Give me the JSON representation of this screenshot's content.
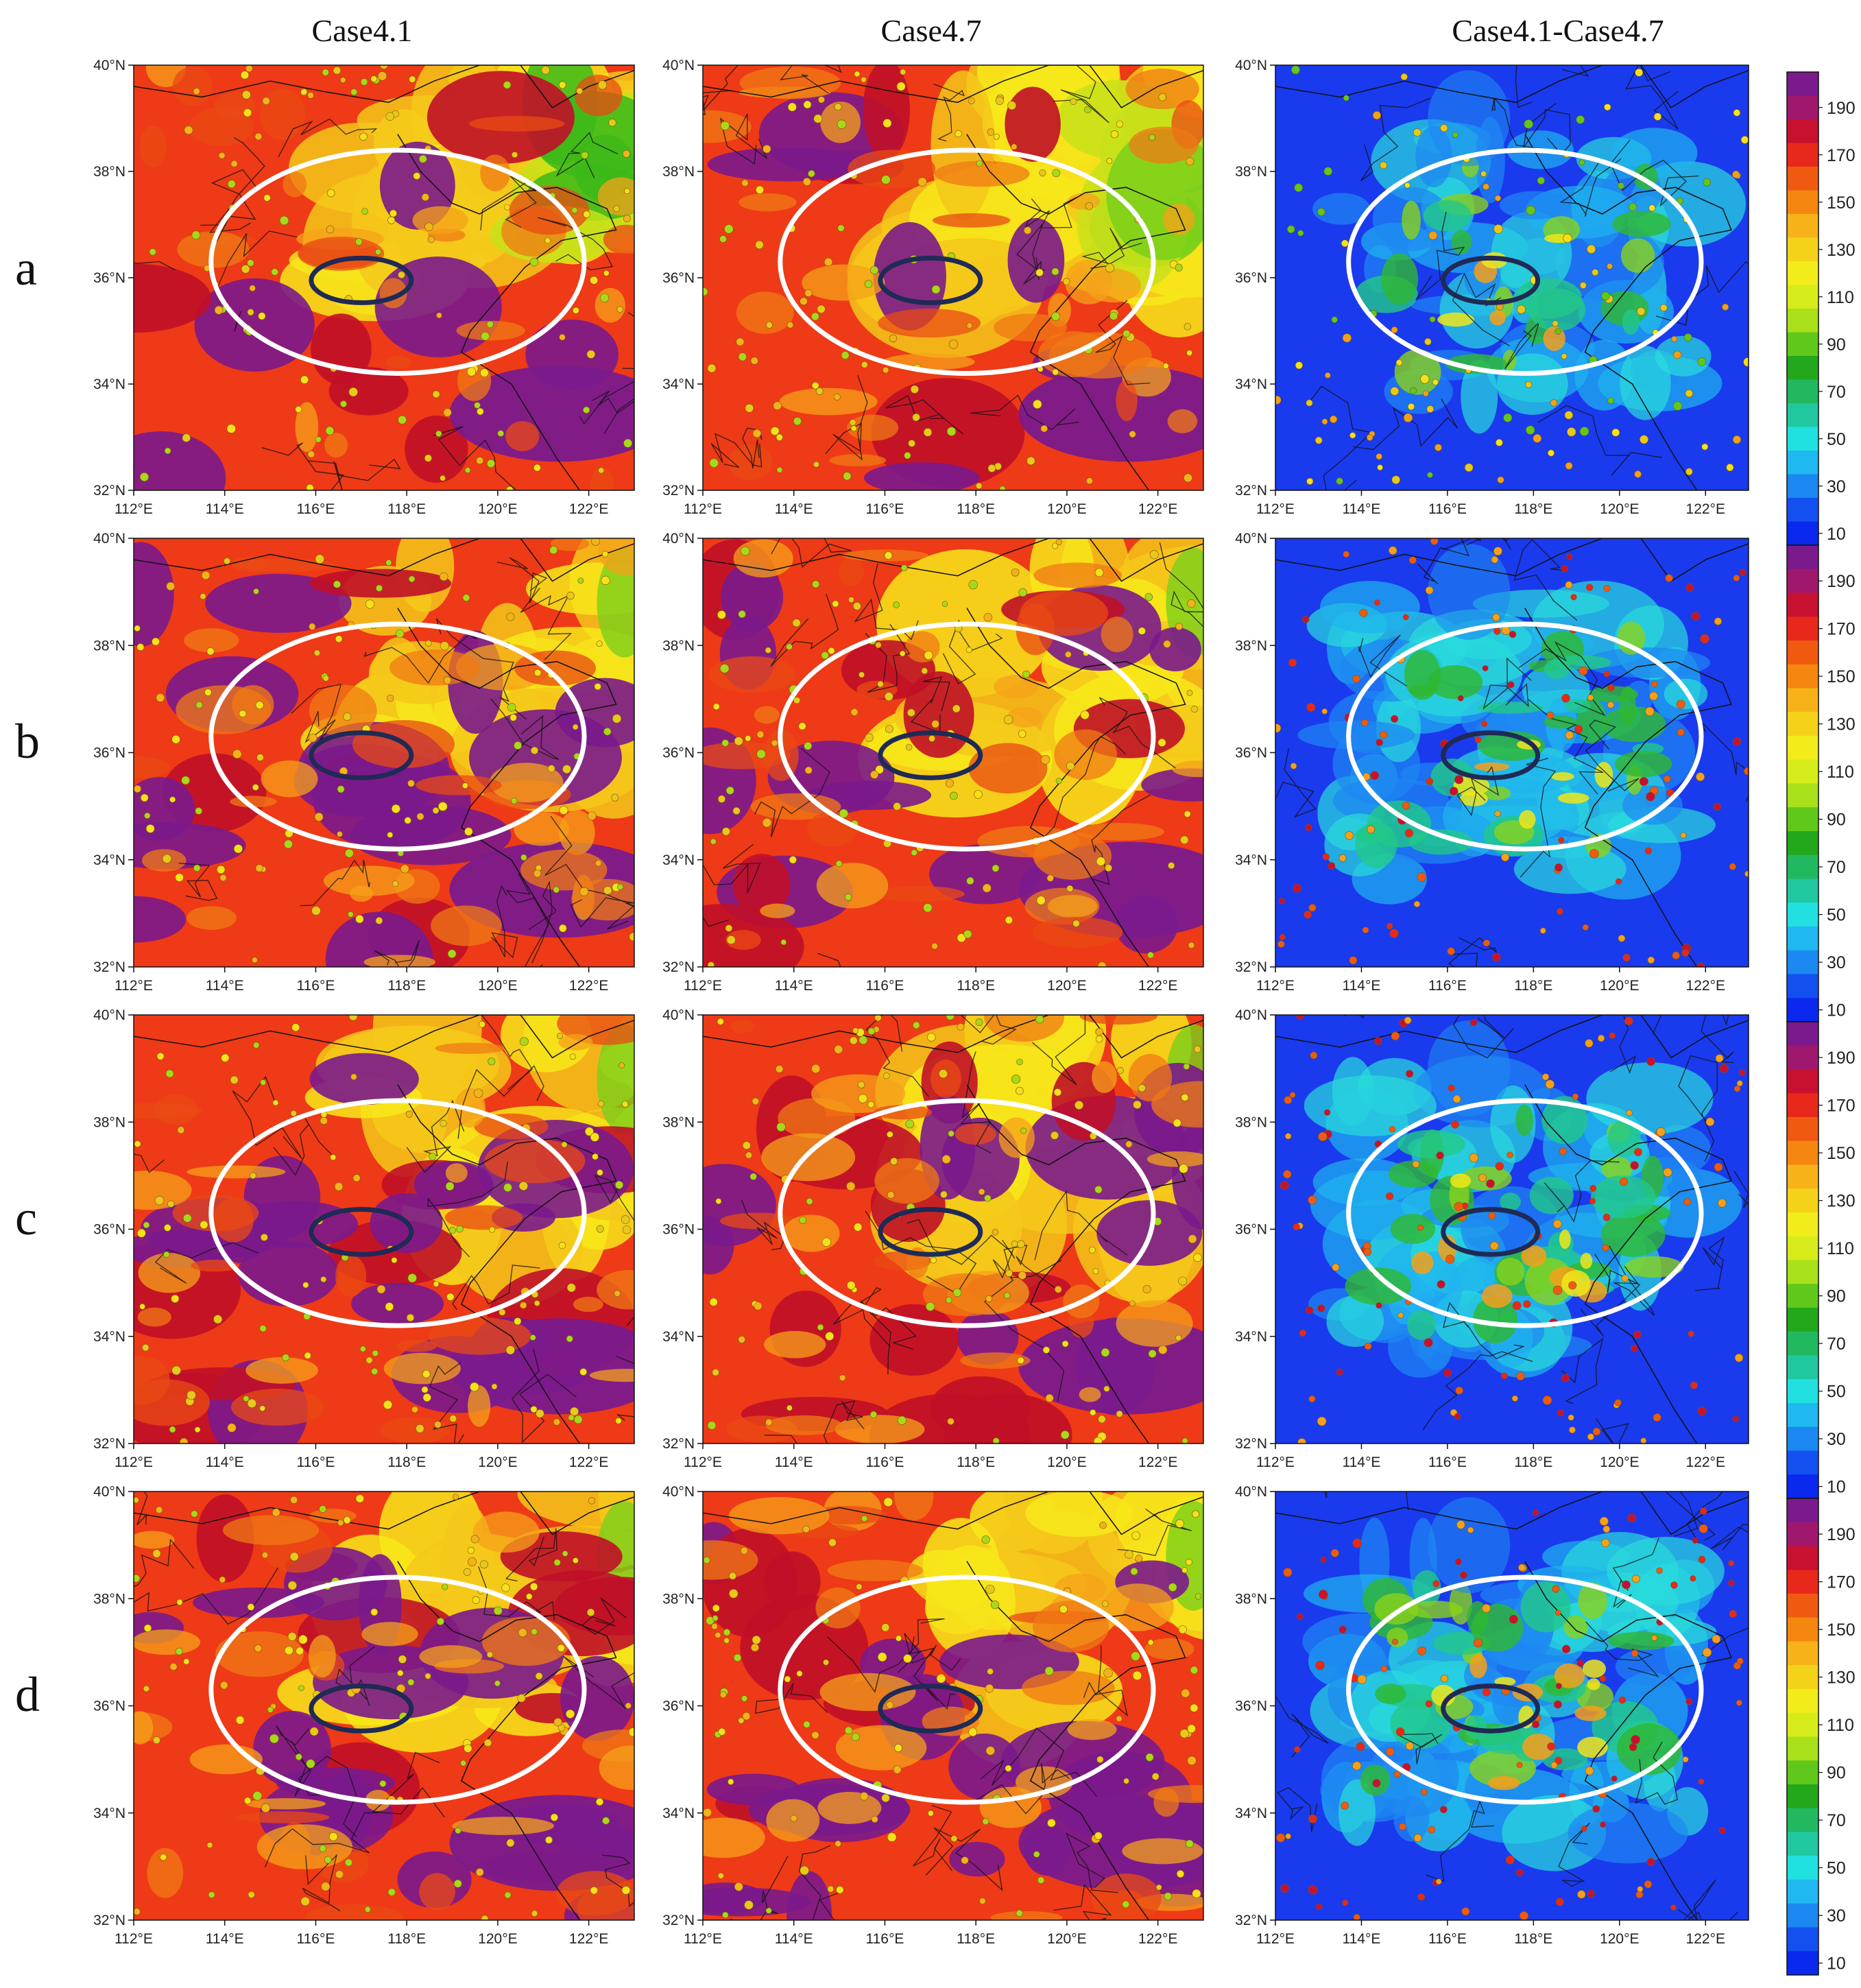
{
  "columns": [
    {
      "title": "Case4.1",
      "palette": "warm"
    },
    {
      "title": "Case4.7",
      "palette": "warm"
    },
    {
      "title": "Case4.1-Case4.7",
      "palette": "cool"
    }
  ],
  "rows": [
    {
      "label": "a"
    },
    {
      "label": "b"
    },
    {
      "label": "c"
    },
    {
      "label": "d"
    }
  ],
  "lat_ticks": [
    "32°N",
    "34°N",
    "36°N",
    "38°N",
    "40°N"
  ],
  "lon_ticks": [
    "112°E",
    "114°E",
    "116°E",
    "118°E",
    "120°E",
    "122°E"
  ],
  "map_extent": {
    "lon": [
      112,
      123
    ],
    "lat": [
      32,
      40
    ]
  },
  "overlays": {
    "outer_ellipse": {
      "color": "#ffffff",
      "center_lon": 117.8,
      "center_lat": 36.3,
      "rx_deg": 4.1,
      "ry_deg": 2.1
    },
    "inner_ellipse": {
      "color": "#1f2a55",
      "center_lon": 117.0,
      "center_lat": 35.95,
      "rx_deg": 1.1,
      "ry_deg": 0.42
    }
  },
  "colorbar": {
    "labels": [
      "190",
      "170",
      "150",
      "130",
      "110",
      "90",
      "70",
      "50",
      "30",
      "10"
    ],
    "colors": [
      "#7a1a8c",
      "#a0186e",
      "#c81030",
      "#e8281a",
      "#f05a10",
      "#f5860f",
      "#f7b21a",
      "#f5d21a",
      "#f2ec1a",
      "#d6ec1a",
      "#a8e01a",
      "#60c81a",
      "#22a81a",
      "#22b860",
      "#20c8a0",
      "#20e0e0",
      "#20b8f0",
      "#1a88f0",
      "#1450f0",
      "#0a28ee"
    ]
  },
  "palettes": {
    "warm": [
      "#f7e81a",
      "#f5c81a",
      "#f5a21a",
      "#f07a14",
      "#ea4a14",
      "#e8201a",
      "#c01028",
      "#7a1a8c",
      "#6a1a90"
    ],
    "warm_green": [
      "#3cb81a",
      "#7ad01a",
      "#c8e01a"
    ],
    "cool": [
      "#1a3aee",
      "#1a5cf0",
      "#1e88f2",
      "#20b4f0",
      "#2adcdc",
      "#22c88a",
      "#30b830",
      "#8ad21a",
      "#f0e61a",
      "#f5a01a"
    ]
  }
}
